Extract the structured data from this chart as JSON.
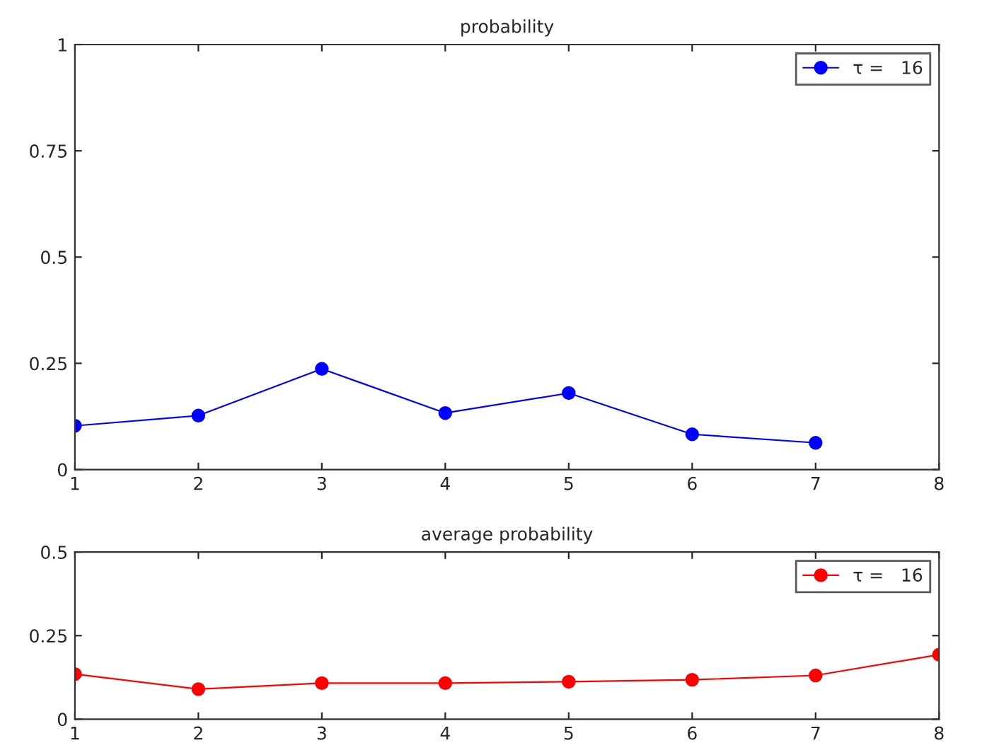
{
  "chart_data": [
    {
      "type": "line",
      "title": "probability",
      "series": [
        {
          "name": "τ =   16",
          "color": "#0000ff",
          "x": [
            1,
            2,
            3,
            4,
            5,
            6,
            7
          ],
          "values": [
            0.103,
            0.127,
            0.237,
            0.133,
            0.18,
            0.083,
            0.063
          ]
        }
      ],
      "xlim": [
        1,
        8
      ],
      "xticks": [
        1,
        2,
        3,
        4,
        5,
        6,
        7,
        8
      ],
      "ylim": [
        0,
        1
      ],
      "yticks": [
        0,
        0.25,
        0.5,
        0.75,
        1
      ],
      "marker": "circle",
      "line_style": "solid",
      "legend": "top right",
      "grid": false
    },
    {
      "type": "line",
      "title": "average probability",
      "x": [
        1,
        2,
        3,
        4,
        5,
        6,
        7,
        8
      ],
      "series": [
        {
          "name": "τ =   16",
          "color": "#ff0000",
          "values": [
            0.135,
            0.09,
            0.108,
            0.108,
            0.112,
            0.118,
            0.131,
            0.193
          ]
        }
      ],
      "xlim": [
        1,
        8
      ],
      "xticks": [
        1,
        2,
        3,
        4,
        5,
        6,
        7,
        8
      ],
      "ylim": [
        0,
        0.5
      ],
      "yticks": [
        0,
        0.25,
        0.5
      ],
      "marker": "circle",
      "line_style": "solid",
      "legend": "top right",
      "grid": false
    }
  ]
}
